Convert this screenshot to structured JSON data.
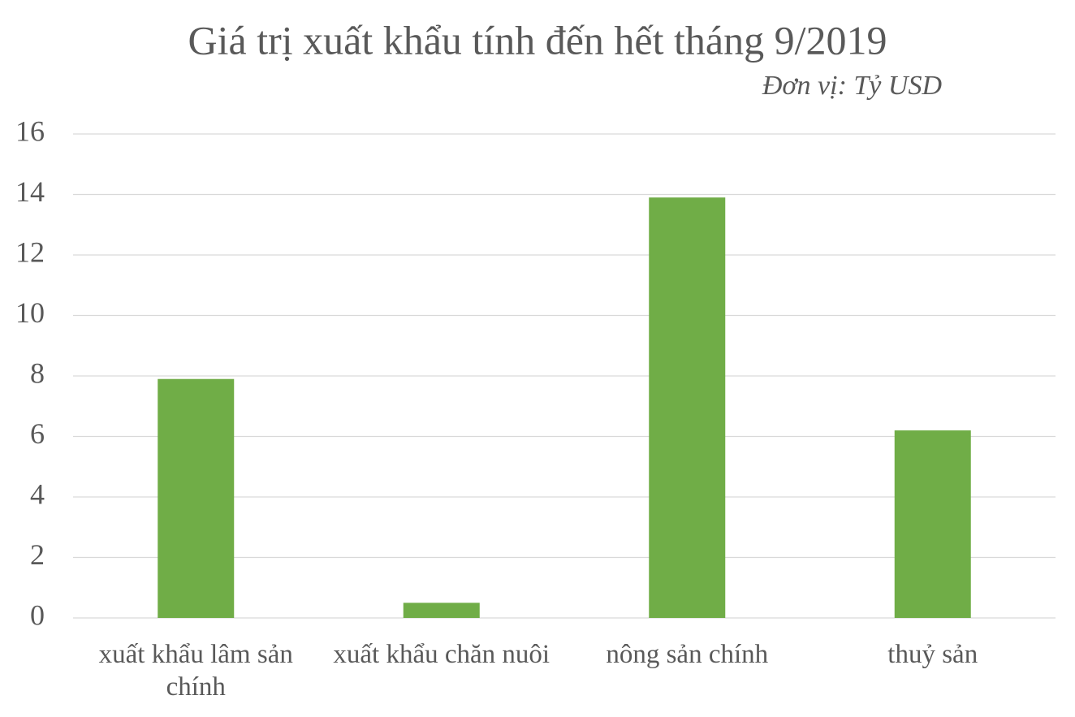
{
  "chart_data": {
    "type": "bar",
    "title": "Giá trị xuất khẩu tính đến hết tháng 9/2019",
    "subtitle": "Đơn vị: Tỷ USD",
    "categories": [
      "xuất khẩu lâm sản chính",
      "xuất khẩu chăn nuôi",
      "nông sản chính",
      "thuỷ sản"
    ],
    "values": [
      7.9,
      0.5,
      13.9,
      6.2
    ],
    "color": "#70ad47",
    "ylim": [
      0,
      16
    ],
    "yticks": [
      0,
      2,
      4,
      6,
      8,
      10,
      12,
      14,
      16
    ],
    "grid": true
  }
}
